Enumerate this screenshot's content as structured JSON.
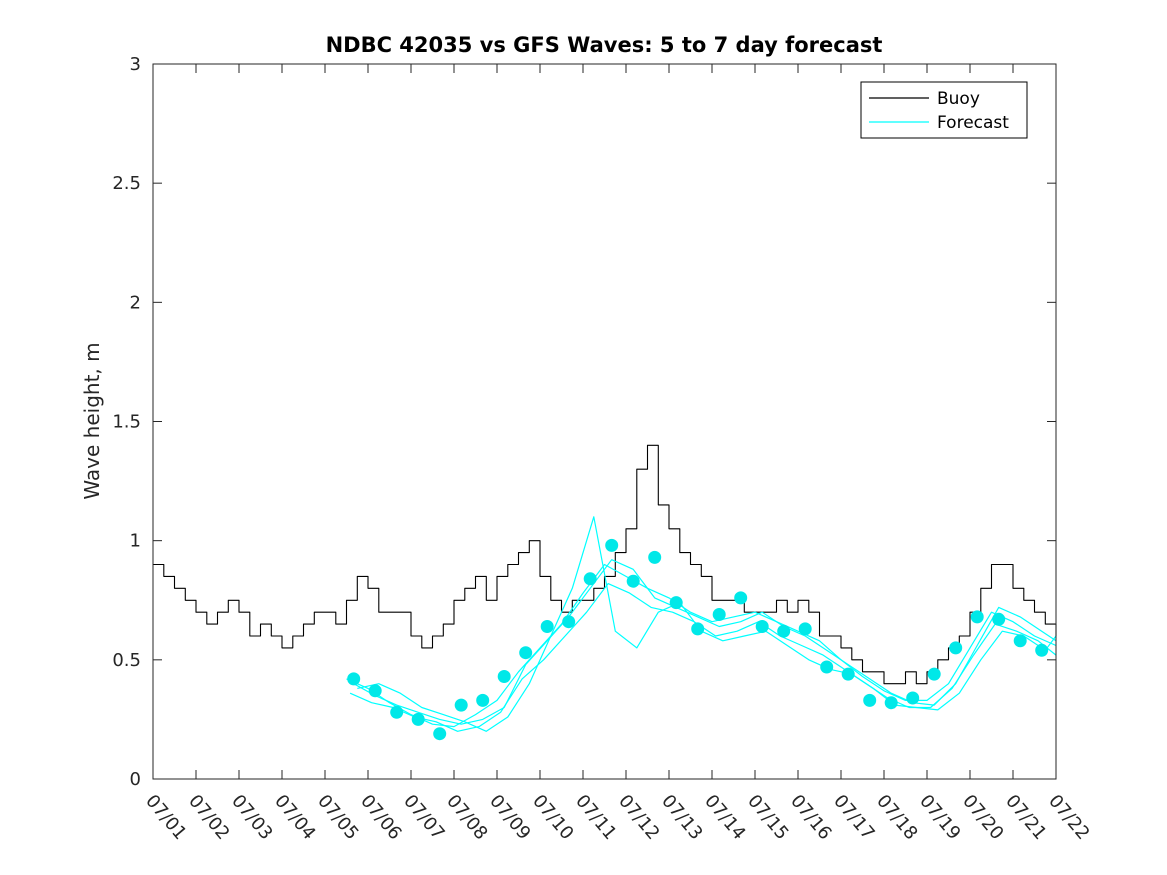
{
  "chart_data": {
    "type": "line",
    "title": "NDBC 42035 vs GFS Waves: 5 to 7 day forecast",
    "xlabel": "",
    "ylabel": "Wave height, m",
    "ylim": [
      0,
      3
    ],
    "xlim": [
      "07/01",
      "07/22"
    ],
    "yticks": [
      "0",
      "0.5",
      "1",
      "1.5",
      "2",
      "2.5",
      "3"
    ],
    "xticks": [
      "07/01",
      "07/02",
      "07/03",
      "07/04",
      "07/05",
      "07/06",
      "07/07",
      "07/08",
      "07/09",
      "07/10",
      "07/11",
      "07/12",
      "07/13",
      "07/14",
      "07/15",
      "07/16",
      "07/17",
      "07/18",
      "07/19",
      "07/20",
      "07/21",
      "07/22"
    ],
    "grid": false,
    "legend": {
      "placement": "top-right",
      "entries": [
        "Buoy",
        "Forecast"
      ]
    },
    "colors": {
      "buoy": "#000000",
      "forecast": "#00ffff",
      "markers": "#00e8e8",
      "axes": "#262626"
    },
    "series": [
      {
        "name": "Buoy",
        "x": [
          "07/01 00:00",
          "07/01 06:00",
          "07/01 12:00",
          "07/01 18:00",
          "07/02 00:00",
          "07/02 06:00",
          "07/02 12:00",
          "07/02 18:00",
          "07/03 00:00",
          "07/03 06:00",
          "07/03 12:00",
          "07/03 18:00",
          "07/04 00:00",
          "07/04 06:00",
          "07/04 12:00",
          "07/04 18:00",
          "07/05 00:00",
          "07/05 06:00",
          "07/05 12:00",
          "07/05 18:00",
          "07/06 00:00",
          "07/06 06:00",
          "07/06 12:00",
          "07/06 18:00",
          "07/07 00:00",
          "07/07 06:00",
          "07/07 12:00",
          "07/07 18:00",
          "07/08 00:00",
          "07/08 06:00",
          "07/08 12:00",
          "07/08 18:00",
          "07/09 00:00",
          "07/09 06:00",
          "07/09 12:00",
          "07/09 18:00",
          "07/10 00:00",
          "07/10 06:00",
          "07/10 12:00",
          "07/10 18:00",
          "07/11 00:00",
          "07/11 06:00",
          "07/11 12:00",
          "07/11 18:00",
          "07/12 00:00",
          "07/12 06:00",
          "07/12 12:00",
          "07/12 18:00",
          "07/13 00:00",
          "07/13 06:00",
          "07/13 12:00",
          "07/13 18:00",
          "07/14 00:00",
          "07/14 06:00",
          "07/14 12:00",
          "07/14 18:00",
          "07/15 00:00",
          "07/15 06:00",
          "07/15 12:00",
          "07/15 18:00",
          "07/16 00:00",
          "07/16 06:00",
          "07/16 12:00",
          "07/16 18:00",
          "07/17 00:00",
          "07/17 06:00",
          "07/17 12:00",
          "07/17 18:00",
          "07/18 00:00",
          "07/18 06:00",
          "07/18 12:00",
          "07/18 18:00",
          "07/19 00:00",
          "07/19 06:00",
          "07/19 12:00",
          "07/19 18:00",
          "07/20 00:00",
          "07/20 06:00",
          "07/20 12:00",
          "07/20 18:00",
          "07/21 00:00",
          "07/21 06:00",
          "07/21 12:00",
          "07/21 18:00",
          "07/22 00:00"
        ],
        "values": [
          0.9,
          0.85,
          0.8,
          0.75,
          0.7,
          0.65,
          0.7,
          0.75,
          0.7,
          0.6,
          0.65,
          0.6,
          0.55,
          0.6,
          0.65,
          0.7,
          0.7,
          0.65,
          0.75,
          0.85,
          0.8,
          0.7,
          0.7,
          0.7,
          0.6,
          0.55,
          0.6,
          0.65,
          0.75,
          0.8,
          0.85,
          0.75,
          0.85,
          0.9,
          0.95,
          1.0,
          0.85,
          0.75,
          0.7,
          0.75,
          0.75,
          0.8,
          0.85,
          0.95,
          1.05,
          1.3,
          1.4,
          1.15,
          1.05,
          0.95,
          0.9,
          0.85,
          0.75,
          0.75,
          0.75,
          0.7,
          0.7,
          0.7,
          0.75,
          0.7,
          0.75,
          0.7,
          0.6,
          0.6,
          0.55,
          0.5,
          0.45,
          0.45,
          0.4,
          0.4,
          0.45,
          0.4,
          0.45,
          0.5,
          0.55,
          0.6,
          0.7,
          0.8,
          0.9,
          0.9,
          0.8,
          0.75,
          0.7,
          0.65,
          0.6
        ]
      },
      {
        "name": "Forecast",
        "x": [
          "07/05 12:00",
          "07/06 00:00",
          "07/06 12:00",
          "07/07 00:00",
          "07/07 12:00",
          "07/08 00:00",
          "07/08 12:00",
          "07/09 00:00",
          "07/09 12:00",
          "07/10 00:00",
          "07/10 12:00",
          "07/11 00:00",
          "07/11 12:00",
          "07/12 00:00",
          "07/12 12:00",
          "07/13 00:00",
          "07/13 12:00",
          "07/14 00:00",
          "07/14 12:00",
          "07/15 00:00",
          "07/15 12:00",
          "07/16 00:00",
          "07/16 12:00",
          "07/17 00:00",
          "07/17 12:00",
          "07/18 00:00",
          "07/18 12:00",
          "07/19 00:00",
          "07/19 12:00",
          "07/20 00:00",
          "07/20 12:00",
          "07/21 00:00",
          "07/21 12:00",
          "07/22 00:00"
        ],
        "values": [
          0.42,
          0.38,
          0.32,
          0.27,
          0.23,
          0.22,
          0.27,
          0.33,
          0.45,
          0.55,
          0.65,
          0.78,
          0.9,
          0.85,
          0.8,
          0.76,
          0.7,
          0.66,
          0.68,
          0.7,
          0.66,
          0.62,
          0.58,
          0.5,
          0.43,
          0.37,
          0.33,
          0.33,
          0.4,
          0.55,
          0.7,
          0.66,
          0.6,
          0.56
        ]
      },
      {
        "name": "",
        "x": [
          "07/05 14:00",
          "07/06 02:00",
          "07/06 14:00",
          "07/07 02:00",
          "07/07 14:00",
          "07/08 02:00",
          "07/08 14:00",
          "07/09 02:00",
          "07/09 14:00",
          "07/10 02:00",
          "07/10 14:00",
          "07/11 02:00",
          "07/11 14:00",
          "07/12 02:00",
          "07/12 14:00",
          "07/13 02:00",
          "07/13 14:00",
          "07/14 02:00",
          "07/14 14:00",
          "07/15 02:00",
          "07/15 14:00",
          "07/16 02:00",
          "07/16 14:00",
          "07/17 02:00",
          "07/17 14:00",
          "07/18 02:00",
          "07/18 14:00",
          "07/19 02:00",
          "07/19 14:00",
          "07/20 02:00",
          "07/20 14:00",
          "07/21 02:00",
          "07/21 14:00",
          "07/22 00:00"
        ],
        "values": [
          0.36,
          0.32,
          0.3,
          0.26,
          0.24,
          0.2,
          0.22,
          0.28,
          0.42,
          0.5,
          0.6,
          0.7,
          0.82,
          0.78,
          0.72,
          0.7,
          0.66,
          0.6,
          0.62,
          0.66,
          0.6,
          0.56,
          0.52,
          0.46,
          0.4,
          0.34,
          0.3,
          0.3,
          0.38,
          0.52,
          0.65,
          0.62,
          0.58,
          0.52
        ]
      },
      {
        "name": "",
        "x": [
          "07/05 16:00",
          "07/06 04:00",
          "07/06 16:00",
          "07/07 04:00",
          "07/07 16:00",
          "07/08 04:00",
          "07/08 16:00",
          "07/09 04:00",
          "07/09 16:00",
          "07/10 04:00",
          "07/10 16:00",
          "07/11 04:00",
          "07/11 16:00",
          "07/12 04:00",
          "07/12 16:00",
          "07/13 04:00",
          "07/13 16:00",
          "07/14 04:00",
          "07/14 16:00",
          "07/15 04:00",
          "07/15 16:00",
          "07/16 04:00",
          "07/16 16:00",
          "07/17 04:00",
          "07/17 16:00",
          "07/18 04:00",
          "07/18 16:00",
          "07/19 04:00",
          "07/19 16:00",
          "07/20 04:00",
          "07/20 16:00",
          "07/21 04:00",
          "07/21 16:00",
          "07/22 00:00"
        ],
        "values": [
          0.4,
          0.35,
          0.31,
          0.28,
          0.25,
          0.23,
          0.25,
          0.3,
          0.48,
          0.58,
          0.68,
          0.8,
          0.92,
          0.88,
          0.76,
          0.72,
          0.68,
          0.64,
          0.66,
          0.7,
          0.64,
          0.6,
          0.54,
          0.48,
          0.42,
          0.36,
          0.32,
          0.31,
          0.4,
          0.56,
          0.72,
          0.68,
          0.62,
          0.58
        ]
      },
      {
        "name": "",
        "x": [
          "07/05 18:00",
          "07/06 06:00",
          "07/06 18:00",
          "07/07 06:00",
          "07/07 18:00",
          "07/08 06:00",
          "07/08 18:00",
          "07/09 06:00",
          "07/09 18:00",
          "07/10 06:00",
          "07/10 18:00",
          "07/11 06:00",
          "07/11 18:00",
          "07/12 06:00",
          "07/12 18:00",
          "07/13 06:00",
          "07/13 18:00",
          "07/14 06:00",
          "07/14 18:00",
          "07/15 06:00",
          "07/15 18:00",
          "07/16 06:00",
          "07/16 18:00",
          "07/17 06:00",
          "07/17 18:00",
          "07/18 06:00",
          "07/18 18:00",
          "07/19 06:00",
          "07/19 18:00",
          "07/20 06:00",
          "07/20 18:00",
          "07/21 06:00",
          "07/21 18:00",
          "07/22 00:00"
        ],
        "values": [
          0.38,
          0.4,
          0.36,
          0.3,
          0.27,
          0.24,
          0.2,
          0.26,
          0.4,
          0.6,
          0.8,
          1.1,
          0.62,
          0.55,
          0.7,
          0.74,
          0.62,
          0.58,
          0.6,
          0.62,
          0.56,
          0.5,
          0.46,
          0.44,
          0.38,
          0.31,
          0.3,
          0.29,
          0.36,
          0.5,
          0.62,
          0.6,
          0.54,
          0.6
        ]
      }
    ],
    "markers": {
      "x": [
        "07/05 16:00",
        "07/06 04:00",
        "07/06 16:00",
        "07/07 04:00",
        "07/07 16:00",
        "07/08 04:00",
        "07/08 16:00",
        "07/09 04:00",
        "07/09 16:00",
        "07/10 04:00",
        "07/10 16:00",
        "07/11 04:00",
        "07/11 16:00",
        "07/12 04:00",
        "07/12 16:00",
        "07/13 04:00",
        "07/13 16:00",
        "07/14 04:00",
        "07/14 16:00",
        "07/15 04:00",
        "07/15 16:00",
        "07/16 04:00",
        "07/16 16:00",
        "07/17 04:00",
        "07/17 16:00",
        "07/18 04:00",
        "07/18 16:00",
        "07/19 04:00",
        "07/19 16:00",
        "07/20 04:00",
        "07/20 16:00",
        "07/21 04:00",
        "07/21 16:00"
      ],
      "values": [
        0.42,
        0.37,
        0.28,
        0.25,
        0.19,
        0.31,
        0.33,
        0.43,
        0.53,
        0.64,
        0.66,
        0.84,
        0.98,
        0.83,
        0.93,
        0.74,
        0.63,
        0.69,
        0.76,
        0.64,
        0.62,
        0.63,
        0.47,
        0.44,
        0.33,
        0.32,
        0.34,
        0.44,
        0.55,
        0.68,
        0.67,
        0.58,
        0.54
      ]
    }
  }
}
